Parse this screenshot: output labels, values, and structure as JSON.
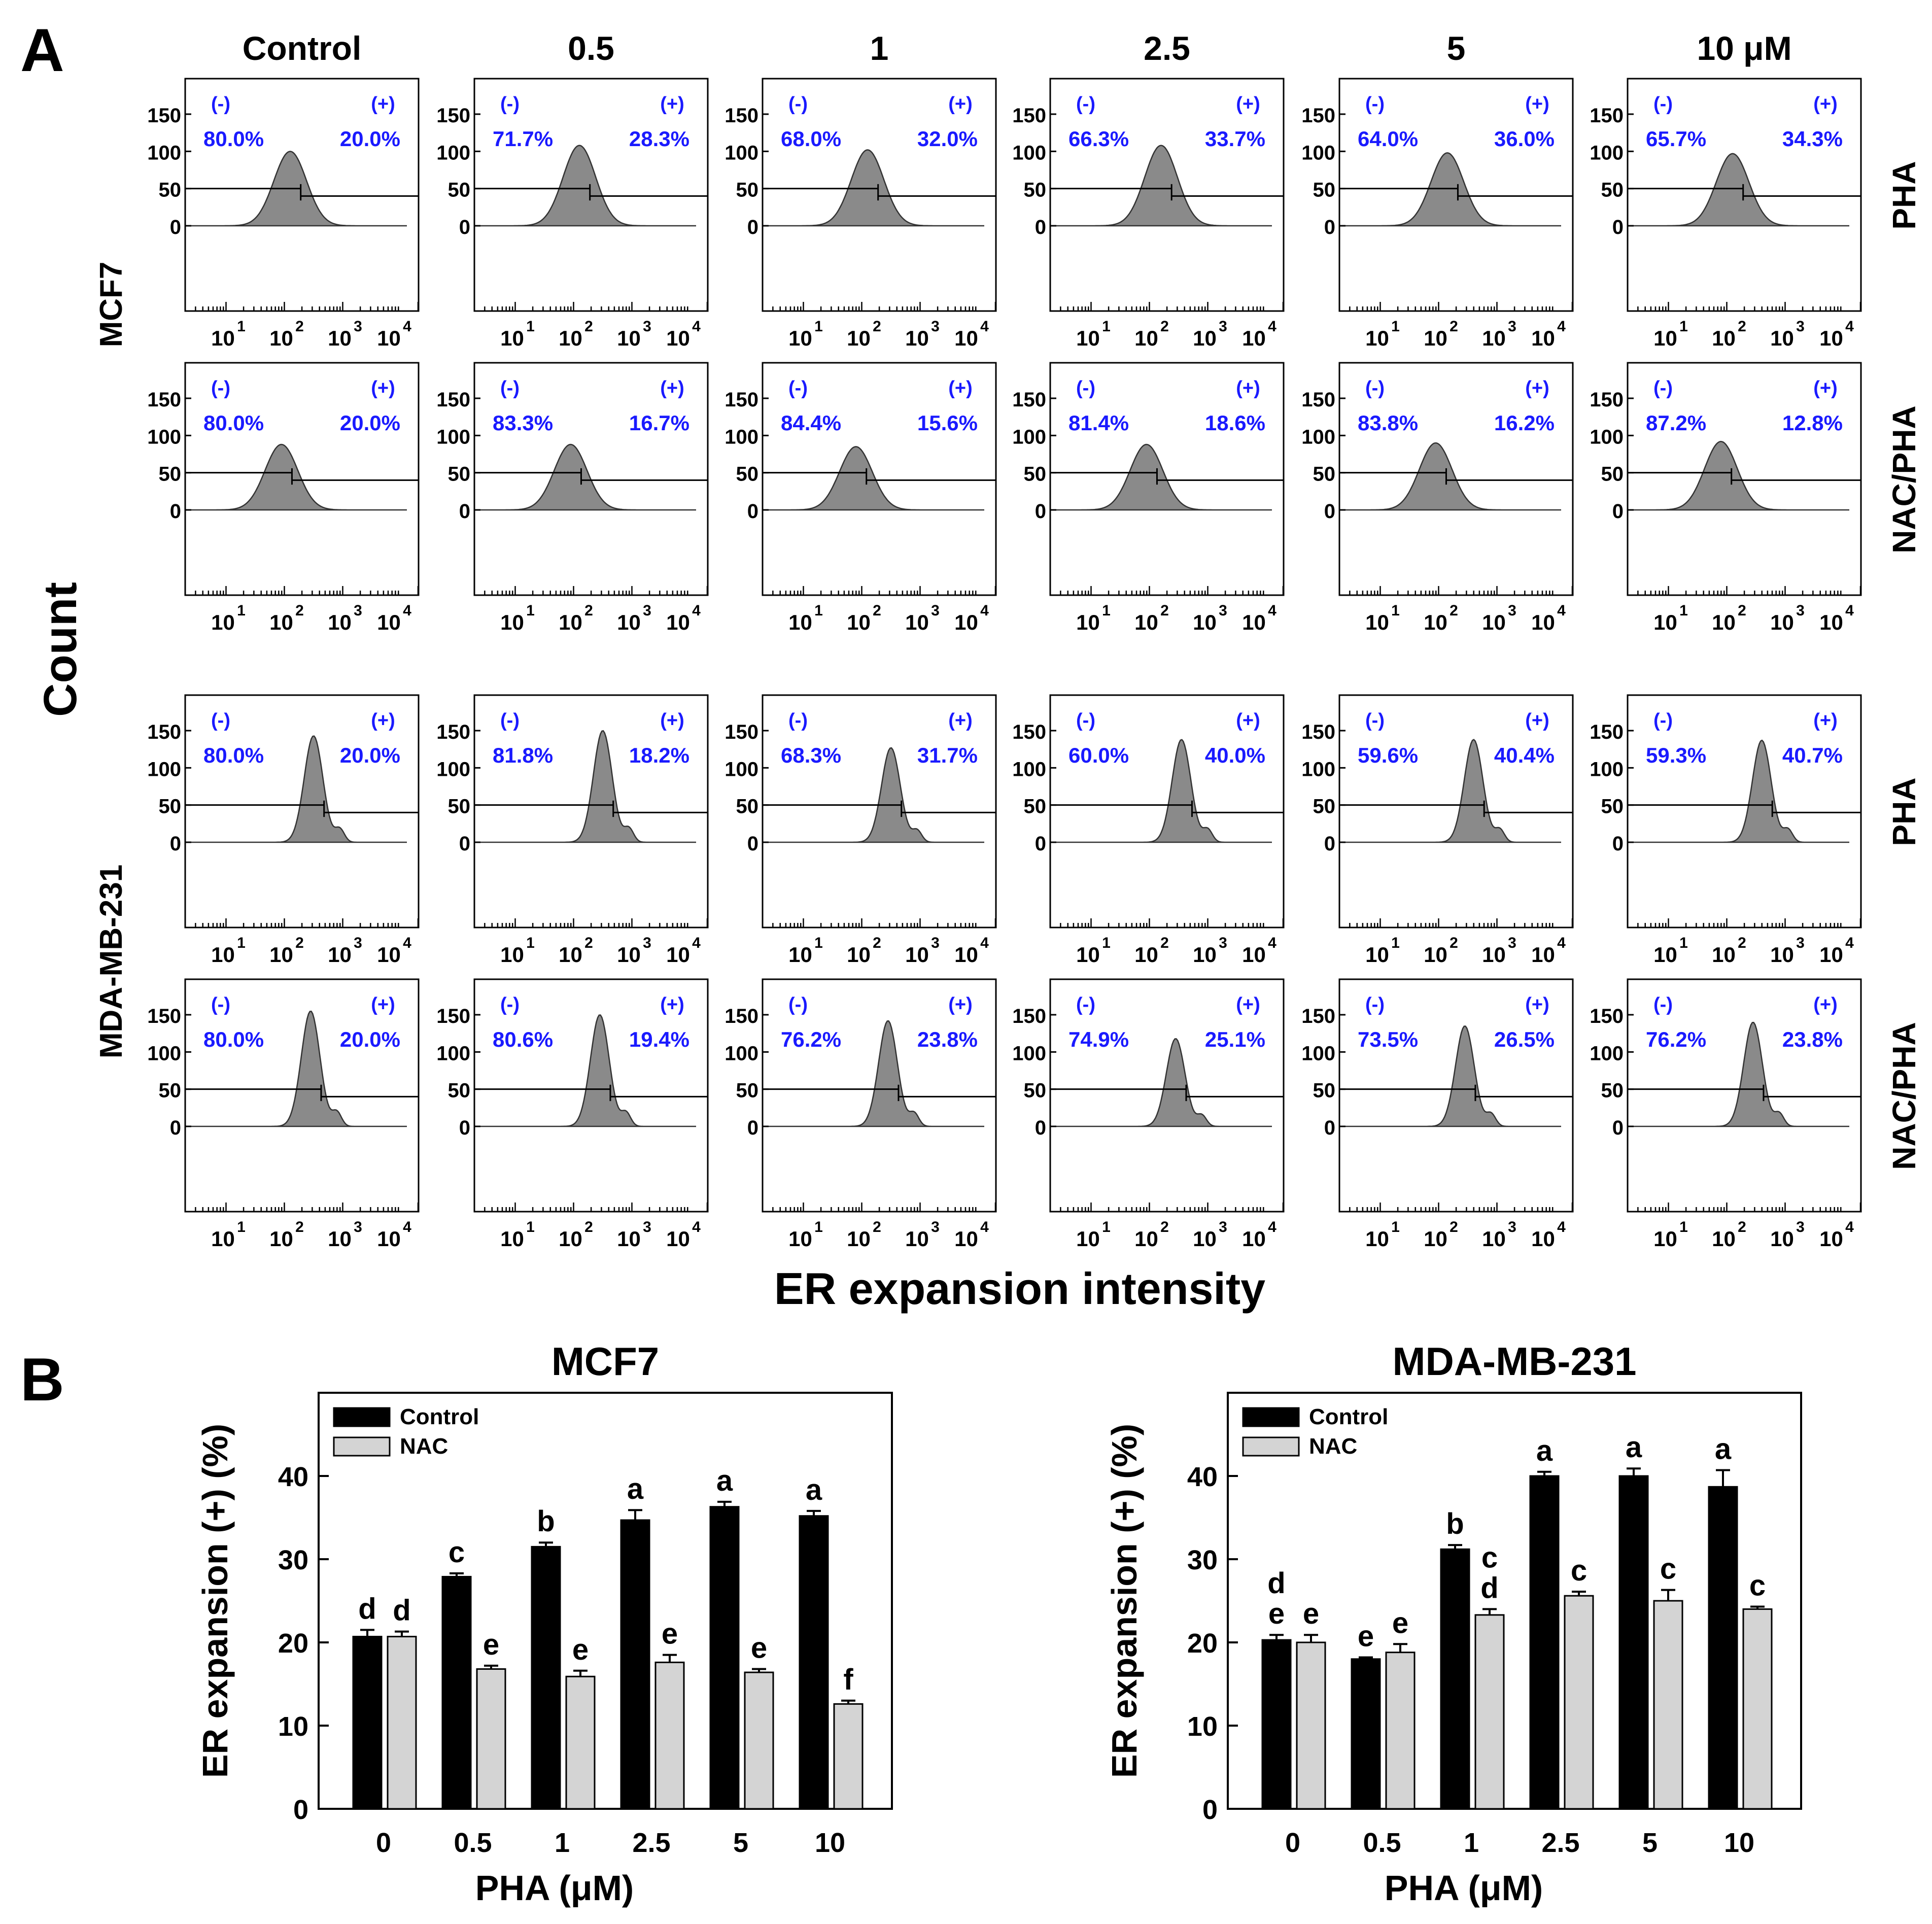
{
  "panel_letters": {
    "a": "A",
    "b": "B"
  },
  "panel_a": {
    "column_headers": [
      "Control",
      "0.5",
      "1",
      "2.5",
      "5",
      "10 μM"
    ],
    "cell_line_labels": [
      "MCF7",
      "MDA-MB-231"
    ],
    "row_treatment_labels": [
      "PHA",
      "NAC/PHA",
      "PHA",
      "NAC/PHA"
    ],
    "y_axis_title": "Count",
    "x_axis_title": "ER expansion intensity",
    "gate_labels": {
      "neg": "(-)",
      "pos": "(+)"
    },
    "percentages": [
      [
        [
          "80.0%",
          "20.0%"
        ],
        [
          "71.7%",
          "28.3%"
        ],
        [
          "68.0%",
          "32.0%"
        ],
        [
          "66.3%",
          "33.7%"
        ],
        [
          "64.0%",
          "36.0%"
        ],
        [
          "65.7%",
          "34.3%"
        ]
      ],
      [
        [
          "80.0%",
          "20.0%"
        ],
        [
          "83.3%",
          "16.7%"
        ],
        [
          "84.4%",
          "15.6%"
        ],
        [
          "81.4%",
          "18.6%"
        ],
        [
          "83.8%",
          "16.2%"
        ],
        [
          "87.2%",
          "12.8%"
        ]
      ],
      [
        [
          "80.0%",
          "20.0%"
        ],
        [
          "81.8%",
          "18.2%"
        ],
        [
          "68.3%",
          "31.7%"
        ],
        [
          "60.0%",
          "40.0%"
        ],
        [
          "59.6%",
          "40.4%"
        ],
        [
          "59.3%",
          "40.7%"
        ]
      ],
      [
        [
          "80.0%",
          "20.0%"
        ],
        [
          "80.6%",
          "19.4%"
        ],
        [
          "76.2%",
          "23.8%"
        ],
        [
          "74.9%",
          "25.1%"
        ],
        [
          "73.5%",
          "26.5%"
        ],
        [
          "76.2%",
          "23.8%"
        ]
      ]
    ],
    "y_ticks": [
      "0",
      "50",
      "100",
      "150"
    ],
    "x_tick_bases": [
      "10",
      "10",
      "10",
      "10"
    ],
    "x_tick_exps": [
      "1",
      "2",
      "3",
      "4"
    ],
    "histogram_peaks": [
      [
        {
          "mu": 2.1,
          "h": 100
        },
        {
          "mu": 2.1,
          "h": 108
        },
        {
          "mu": 2.1,
          "h": 102
        },
        {
          "mu": 2.2,
          "h": 108
        },
        {
          "mu": 2.15,
          "h": 98
        },
        {
          "mu": 2.1,
          "h": 97
        }
      ],
      [
        {
          "mu": 1.95,
          "h": 88
        },
        {
          "mu": 1.95,
          "h": 88
        },
        {
          "mu": 1.9,
          "h": 85
        },
        {
          "mu": 1.95,
          "h": 88
        },
        {
          "mu": 1.95,
          "h": 90
        },
        {
          "mu": 1.9,
          "h": 92
        }
      ],
      [
        {
          "mu": 2.5,
          "h": 143
        },
        {
          "mu": 2.5,
          "h": 150
        },
        {
          "mu": 2.5,
          "h": 127
        },
        {
          "mu": 2.55,
          "h": 138
        },
        {
          "mu": 2.6,
          "h": 138
        },
        {
          "mu": 2.6,
          "h": 137
        }
      ],
      [
        {
          "mu": 2.45,
          "h": 155
        },
        {
          "mu": 2.45,
          "h": 150
        },
        {
          "mu": 2.45,
          "h": 142
        },
        {
          "mu": 2.45,
          "h": 118
        },
        {
          "mu": 2.45,
          "h": 135
        },
        {
          "mu": 2.45,
          "h": 140
        }
      ]
    ]
  },
  "chart_data": [
    {
      "type": "bar",
      "title": "MCF7",
      "xlabel": "PHA (μM)",
      "ylabel": "ER expansion (+) (%)",
      "ylim": [
        0,
        50
      ],
      "yticks": [
        "0",
        "10",
        "20",
        "30",
        "40"
      ],
      "categories": [
        "0",
        "0.5",
        "1",
        "2.5",
        "5",
        "10"
      ],
      "legend": {
        "position": "top-left",
        "entries": [
          "Control",
          "NAC"
        ]
      },
      "series": [
        {
          "name": "Control",
          "color": "#000000",
          "values": [
            20.7,
            27.9,
            31.5,
            34.7,
            36.3,
            35.2
          ],
          "errors": [
            0.8,
            0.4,
            0.5,
            1.2,
            0.6,
            0.6
          ],
          "labels": [
            "d",
            "c",
            "b",
            "a",
            "a",
            "a"
          ]
        },
        {
          "name": "NAC",
          "color": "#d4d4d4",
          "values": [
            20.7,
            16.8,
            15.9,
            17.6,
            16.4,
            12.6
          ],
          "errors": [
            0.6,
            0.4,
            0.7,
            0.9,
            0.4,
            0.4
          ],
          "labels": [
            "d",
            "e",
            "e",
            "e",
            "e",
            "f"
          ]
        }
      ]
    },
    {
      "type": "bar",
      "title": "MDA-MB-231",
      "xlabel": "PHA (μM)",
      "ylabel": "ER expansion (+) (%)",
      "ylim": [
        0,
        50
      ],
      "yticks": [
        "0",
        "10",
        "20",
        "30",
        "40"
      ],
      "categories": [
        "0",
        "0.5",
        "1",
        "2.5",
        "5",
        "10"
      ],
      "legend": {
        "position": "top-left",
        "entries": [
          "Control",
          "NAC"
        ]
      },
      "series": [
        {
          "name": "Control",
          "color": "#000000",
          "values": [
            20.3,
            18.0,
            31.2,
            40.0,
            40.0,
            38.7
          ],
          "errors": [
            0.6,
            0.2,
            0.5,
            0.5,
            0.9,
            2.0
          ],
          "labels": [
            "d\ne",
            "e",
            "b",
            "a",
            "a",
            "a"
          ]
        },
        {
          "name": "NAC",
          "color": "#d4d4d4",
          "values": [
            20.0,
            18.8,
            23.3,
            25.6,
            25.0,
            24.0
          ],
          "errors": [
            0.9,
            1.0,
            0.7,
            0.5,
            1.3,
            0.3
          ],
          "labels": [
            "e",
            "e",
            "c\nd",
            "c",
            "c",
            "c"
          ]
        }
      ]
    }
  ]
}
